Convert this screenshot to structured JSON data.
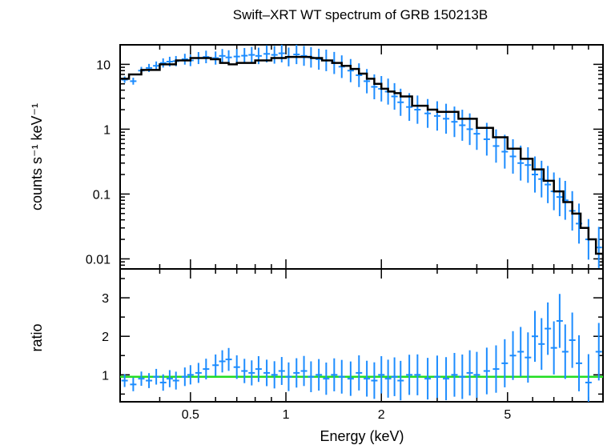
{
  "chart_data": [
    {
      "type": "scatter",
      "panel": "spectrum",
      "title": "Swift–XRT WT spectrum of GRB 150213B",
      "ylabel": "counts s⁻¹ keV⁻¹",
      "xlabel": "",
      "xscale": "log",
      "yscale": "log",
      "xlim": [
        0.3,
        10
      ],
      "ylim": [
        0.007,
        20
      ],
      "x_ticks": [
        0.5,
        1,
        2,
        5
      ],
      "y_ticks": [
        0.01,
        0.1,
        1,
        10
      ],
      "y_tick_labels": [
        "0.01",
        "0.1",
        "1",
        "10"
      ],
      "colors": {
        "data": "#1c8cff",
        "model": "#000000"
      },
      "series": [
        {
          "kind": "data",
          "x": [
            0.31,
            0.33,
            0.35,
            0.37,
            0.39,
            0.41,
            0.43,
            0.45,
            0.48,
            0.5,
            0.53,
            0.56,
            0.6,
            0.63,
            0.66,
            0.7,
            0.74,
            0.78,
            0.82,
            0.87,
            0.92,
            0.97,
            1.02,
            1.08,
            1.14,
            1.2,
            1.27,
            1.34,
            1.42,
            1.5,
            1.6,
            1.7,
            1.8,
            1.9,
            2.0,
            2.1,
            2.2,
            2.3,
            2.45,
            2.6,
            2.8,
            3.0,
            3.2,
            3.4,
            3.6,
            3.8,
            4.0,
            4.3,
            4.6,
            4.9,
            5.2,
            5.5,
            5.8,
            6.1,
            6.4,
            6.7,
            7.0,
            7.3,
            7.6,
            8.0,
            8.4,
            9.0,
            9.7
          ],
          "y": [
            5.8,
            5.5,
            8.0,
            8.8,
            9.5,
            10.5,
            11.0,
            11.2,
            12.0,
            11.5,
            12.5,
            13.0,
            12.5,
            13.5,
            12.8,
            13.2,
            13.6,
            14.0,
            13.5,
            14.5,
            14.0,
            14.8,
            13.0,
            14.2,
            13.5,
            12.8,
            12.0,
            11.5,
            10.5,
            9.2,
            8.0,
            6.8,
            5.5,
            4.5,
            4.2,
            3.8,
            3.2,
            2.6,
            2.2,
            2.0,
            1.75,
            1.6,
            1.45,
            1.3,
            1.15,
            1.0,
            0.85,
            0.7,
            0.55,
            0.45,
            0.38,
            0.3,
            0.28,
            0.2,
            0.17,
            0.14,
            0.11,
            0.09,
            0.08,
            0.055,
            0.035,
            0.02,
            0.015
          ]
        },
        {
          "kind": "model",
          "x": [
            0.3,
            0.32,
            0.35,
            0.4,
            0.45,
            0.5,
            0.55,
            0.58,
            0.62,
            0.66,
            0.7,
            0.8,
            0.9,
            1.0,
            1.1,
            1.2,
            1.3,
            1.4,
            1.5,
            1.6,
            1.7,
            1.8,
            1.9,
            2.0,
            2.1,
            2.2,
            2.3,
            2.5,
            2.8,
            3.0,
            3.5,
            4.0,
            4.5,
            5.0,
            5.5,
            6.0,
            6.5,
            7.0,
            7.5,
            8.0,
            8.5,
            9.0,
            9.5,
            10.0
          ],
          "y": [
            6.0,
            7.0,
            8.2,
            10.0,
            11.5,
            12.5,
            12.5,
            12.0,
            10.5,
            10.0,
            10.5,
            11.5,
            12.5,
            13.0,
            13.0,
            12.5,
            11.5,
            10.5,
            9.5,
            8.5,
            7.2,
            6.0,
            5.0,
            4.2,
            3.8,
            3.6,
            3.2,
            2.3,
            2.0,
            1.85,
            1.45,
            1.05,
            0.75,
            0.5,
            0.35,
            0.24,
            0.16,
            0.11,
            0.075,
            0.05,
            0.03,
            0.02,
            0.012,
            0.008
          ]
        }
      ]
    },
    {
      "type": "scatter",
      "panel": "ratio",
      "ylabel": "ratio",
      "xlabel": "Energy (keV)",
      "xscale": "log",
      "yscale": "linear",
      "xlim": [
        0.3,
        10
      ],
      "ylim": [
        0.3,
        3.75
      ],
      "x_ticks": [
        0.5,
        1,
        2,
        5
      ],
      "x_tick_labels": [
        "0.5",
        "1",
        "2",
        "5"
      ],
      "y_ticks": [
        1,
        2,
        3
      ],
      "y_tick_labels": [
        "1",
        "2",
        "3"
      ],
      "reference_line": 0.95,
      "colors": {
        "data": "#1c8cff",
        "reference": "#22dd22"
      },
      "series": [
        {
          "kind": "data",
          "x": [
            0.31,
            0.33,
            0.35,
            0.37,
            0.39,
            0.41,
            0.43,
            0.45,
            0.48,
            0.5,
            0.53,
            0.56,
            0.6,
            0.63,
            0.66,
            0.7,
            0.74,
            0.78,
            0.82,
            0.87,
            0.92,
            0.97,
            1.02,
            1.08,
            1.14,
            1.2,
            1.27,
            1.34,
            1.42,
            1.5,
            1.6,
            1.7,
            1.8,
            1.9,
            2.0,
            2.1,
            2.2,
            2.3,
            2.45,
            2.6,
            2.8,
            3.0,
            3.2,
            3.4,
            3.6,
            3.8,
            4.0,
            4.3,
            4.6,
            4.9,
            5.2,
            5.5,
            5.8,
            6.1,
            6.4,
            6.7,
            7.0,
            7.3,
            7.6,
            8.0,
            8.4,
            9.0,
            9.7
          ],
          "y": [
            0.85,
            0.75,
            0.9,
            0.85,
            0.95,
            0.8,
            0.9,
            0.85,
            0.95,
            1.0,
            1.05,
            1.15,
            1.25,
            1.35,
            1.4,
            1.2,
            1.1,
            1.05,
            1.15,
            1.05,
            1.0,
            1.1,
            0.95,
            1.05,
            1.1,
            0.95,
            1.0,
            0.9,
            1.0,
            0.95,
            0.9,
            1.05,
            0.9,
            0.85,
            1.0,
            0.9,
            0.95,
            0.85,
            1.0,
            1.0,
            0.9,
            0.95,
            0.9,
            1.0,
            0.95,
            1.05,
            1.0,
            1.1,
            1.15,
            1.3,
            1.5,
            1.6,
            1.45,
            2.0,
            1.8,
            2.2,
            1.7,
            2.4,
            1.6,
            1.9,
            1.3,
            0.8,
            1.6
          ]
        }
      ]
    }
  ]
}
